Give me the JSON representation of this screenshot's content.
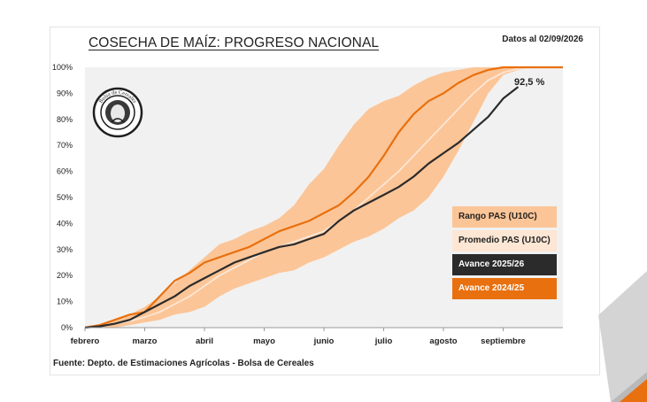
{
  "header": {
    "title": "COSECHA DE MAÍZ: PROGRESO NACIONAL",
    "date_note": "Datos al 02/09/2026"
  },
  "footer": {
    "source": "Fuente: Depto. de Estimaciones Agrícolas - Bolsa de Cereales"
  },
  "logo": {
    "name": "bolsa-de-cereales-seal",
    "text": "Bolsa de Cereales"
  },
  "colors": {
    "range_band": "#fcc597",
    "average_line": "#fde6d4",
    "current_season": "#2b2b2b",
    "previous_season": "#e8700f",
    "plot_background": "#f1f1f1"
  },
  "chart_data": {
    "type": "line",
    "title": "COSECHA DE MAÍZ: PROGRESO NACIONAL",
    "ylim": [
      0,
      100
    ],
    "y_ticks": [
      "0%",
      "10%",
      "20%",
      "30%",
      "40%",
      "50%",
      "60%",
      "70%",
      "80%",
      "90%",
      "100%"
    ],
    "x_ticks": [
      "febrero",
      "marzo",
      "abril",
      "mayo",
      "junio",
      "julio",
      "agosto",
      "septiembre"
    ],
    "x_tick_positions": [
      1,
      5,
      9,
      13,
      17,
      21,
      25,
      29
    ],
    "x_range": [
      1,
      33
    ],
    "grid": false,
    "legend_position": "right",
    "annotation": "92,5 %",
    "series": [
      {
        "name": "Rango PAS (U10C)",
        "type": "band",
        "x": [
          1,
          2,
          3,
          4,
          5,
          6,
          7,
          8,
          9,
          10,
          11,
          12,
          13,
          14,
          15,
          16,
          17,
          18,
          19,
          20,
          21,
          22,
          23,
          24,
          25,
          26,
          27,
          28,
          29,
          30,
          31,
          32,
          33
        ],
        "lower": [
          0,
          0,
          0,
          1,
          2,
          3,
          5,
          6,
          8,
          12,
          15,
          17,
          19,
          21,
          22,
          25,
          27,
          30,
          33,
          35,
          38,
          42,
          45,
          50,
          58,
          68,
          79,
          90,
          97,
          99,
          100,
          100,
          100
        ],
        "upper": [
          0,
          1,
          3,
          5,
          8,
          12,
          17,
          22,
          27,
          32,
          34,
          37,
          39,
          42,
          47,
          55,
          61,
          70,
          78,
          84,
          87,
          89,
          93,
          96,
          98,
          99,
          100,
          100,
          100,
          100,
          100,
          100,
          100
        ]
      },
      {
        "name": "Promedio PAS (U10C)",
        "x": [
          1,
          2,
          3,
          4,
          5,
          6,
          7,
          8,
          9,
          10,
          11,
          12,
          13,
          14,
          15,
          16,
          17,
          18,
          19,
          20,
          21,
          22,
          23,
          24,
          25,
          26,
          27,
          28,
          29,
          30,
          31,
          32,
          33
        ],
        "values": [
          0,
          0.5,
          1.5,
          2.5,
          4,
          6,
          9,
          12,
          16,
          20,
          23,
          26,
          29,
          31,
          33,
          35,
          37,
          41,
          45,
          50,
          55,
          60,
          66,
          72,
          78,
          84,
          90,
          95,
          98,
          99.5,
          100,
          100,
          100
        ]
      },
      {
        "name": "Avance 2025/26",
        "x": [
          1,
          2,
          3,
          4,
          5,
          6,
          7,
          8,
          9,
          10,
          11,
          12,
          13,
          14,
          15,
          16,
          17,
          18,
          19,
          20,
          21,
          22,
          23,
          24,
          25,
          26,
          27,
          28,
          29,
          30
        ],
        "values": [
          0,
          0.5,
          1.5,
          3,
          6,
          9,
          12,
          16,
          19,
          22,
          25,
          27,
          29,
          31,
          32,
          34,
          36,
          41,
          45,
          48,
          51,
          54,
          58,
          63,
          67,
          71,
          76,
          81,
          88,
          92.5
        ]
      },
      {
        "name": "Avance 2024/25",
        "x": [
          1,
          2,
          3,
          4,
          5,
          6,
          7,
          8,
          9,
          10,
          11,
          12,
          13,
          14,
          15,
          16,
          17,
          18,
          19,
          20,
          21,
          22,
          23,
          24,
          25,
          26,
          27,
          28,
          29,
          30,
          31,
          32,
          33
        ],
        "values": [
          0,
          1,
          3,
          5,
          6,
          12,
          18,
          21,
          25,
          27,
          29,
          31,
          34,
          37,
          39,
          41,
          44,
          47,
          52,
          58,
          66,
          75,
          82,
          87,
          90,
          94,
          97,
          99,
          100,
          100,
          100,
          100,
          100
        ]
      }
    ]
  }
}
